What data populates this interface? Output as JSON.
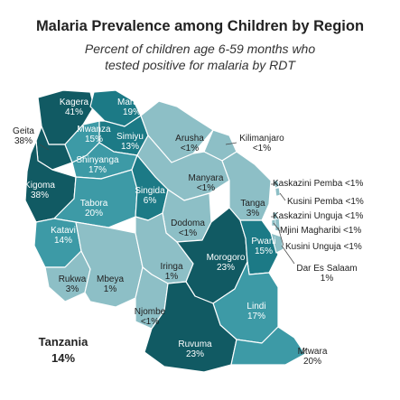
{
  "title": "Malaria Prevalence among Children by Region",
  "subtitle_line1": "Percent of children age 6-59 months who",
  "subtitle_line2": "tested positive for malaria by RDT",
  "country": "Tanzania",
  "country_value": "14%",
  "colors": {
    "darkest": "#115a63",
    "dark": "#1c7a86",
    "medium": "#3d9aa6",
    "light": "#8dbfc6",
    "border": "#ffffff"
  },
  "regions": [
    {
      "key": "kagera",
      "name": "Kagera",
      "value": "41%"
    },
    {
      "key": "mara",
      "name": "Mara",
      "value": "19%"
    },
    {
      "key": "geita",
      "name": "Geita",
      "value": "38%"
    },
    {
      "key": "mwanza",
      "name": "Mwanza",
      "value": "15%"
    },
    {
      "key": "simiyu",
      "name": "Simiyu",
      "value": "13%"
    },
    {
      "key": "shinyanga",
      "name": "Shinyanga",
      "value": "17%"
    },
    {
      "key": "arusha",
      "name": "Arusha",
      "value": "<1%"
    },
    {
      "key": "kilimanjaro",
      "name": "Kilimanjaro",
      "value": "<1%"
    },
    {
      "key": "kigoma",
      "name": "Kigoma",
      "value": "38%"
    },
    {
      "key": "tabora",
      "name": "Tabora",
      "value": "20%"
    },
    {
      "key": "singida",
      "name": "Singida",
      "value": "6%"
    },
    {
      "key": "manyara",
      "name": "Manyara",
      "value": "<1%"
    },
    {
      "key": "tanga",
      "name": "Tanga",
      "value": "3%"
    },
    {
      "key": "kaskazini_pemba",
      "name": "Kaskazini Pemba",
      "value": "<1%"
    },
    {
      "key": "kusini_pemba",
      "name": "Kusini Pemba",
      "value": "<1%"
    },
    {
      "key": "kaskazini_unguja",
      "name": "Kaskazini Unguja",
      "value": "<1%"
    },
    {
      "key": "mjini_magharibi",
      "name": "Mjini Magharibi",
      "value": "<1%"
    },
    {
      "key": "kusini_unguja",
      "name": "Kusini Unguja",
      "value": "<1%"
    },
    {
      "key": "katavi",
      "name": "Katavi",
      "value": "14%"
    },
    {
      "key": "dodoma",
      "name": "Dodoma",
      "value": "<1%"
    },
    {
      "key": "pwani",
      "name": "Pwani",
      "value": "15%"
    },
    {
      "key": "morogoro",
      "name": "Morogoro",
      "value": "23%"
    },
    {
      "key": "dar_es_salaam",
      "name": "Dar Es Salaam",
      "value": "1%"
    },
    {
      "key": "rukwa",
      "name": "Rukwa",
      "value": "3%"
    },
    {
      "key": "mbeya",
      "name": "Mbeya",
      "value": "1%"
    },
    {
      "key": "iringa",
      "name": "Iringa",
      "value": "1%"
    },
    {
      "key": "njombe",
      "name": "Njombe",
      "value": "<1%"
    },
    {
      "key": "lindi",
      "name": "Lindi",
      "value": "17%"
    },
    {
      "key": "ruvuma",
      "name": "Ruvuma",
      "value": "23%"
    },
    {
      "key": "mtwara",
      "name": "Mtwara",
      "value": "20%"
    }
  ]
}
